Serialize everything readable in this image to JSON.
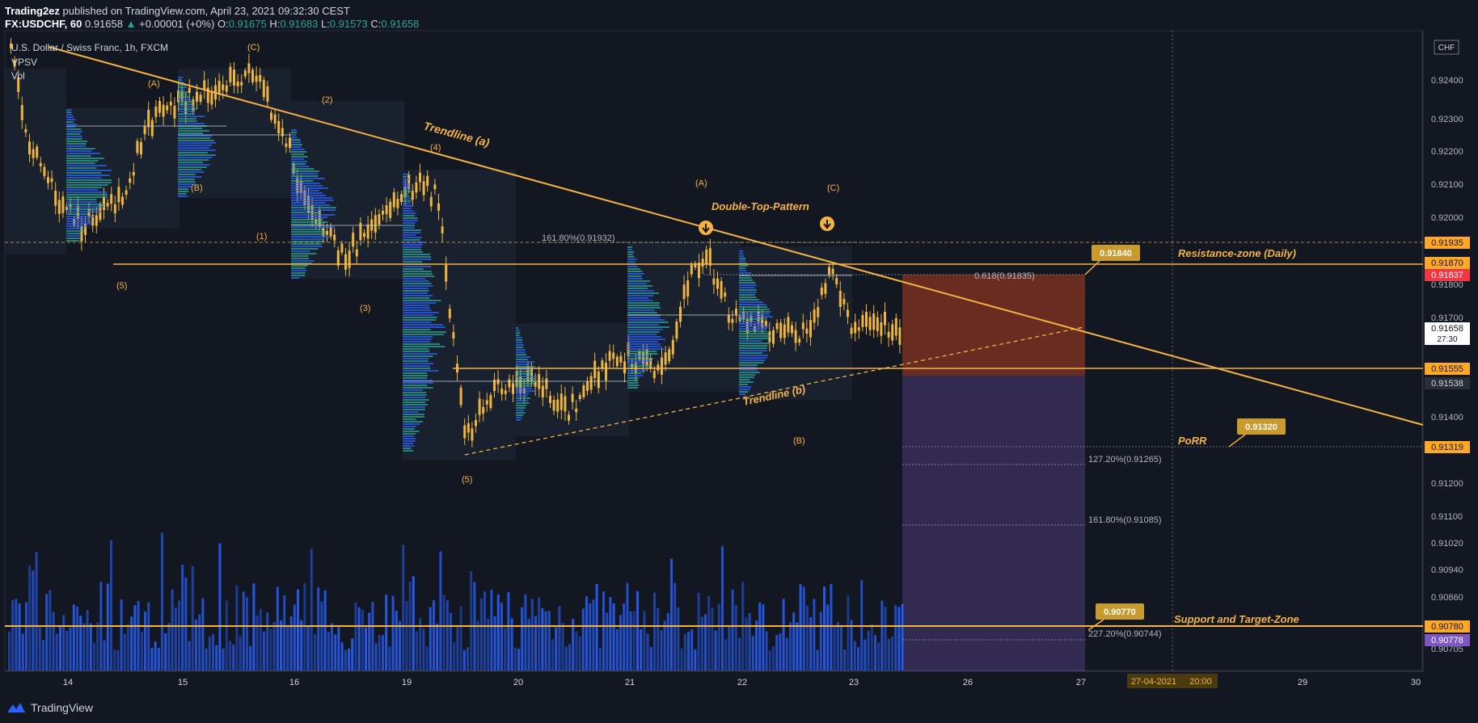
{
  "header": {
    "publisher": "Trading2ez",
    "published_text": "published on TradingView.com, April 23, 2021 09:32:30 CEST",
    "symbol": "FX:USDCHF, 60",
    "price": "0.91658",
    "arrow": "▲",
    "change": "+0.00001 (+0%)",
    "o_label": "O:",
    "o_val": "0.91675",
    "h_label": "H:",
    "h_val": "0.91683",
    "l_label": "L:",
    "l_val": "0.91573",
    "c_label": "C:",
    "c_val": "0.91658"
  },
  "legend": {
    "instrument": "U.S. Dollar / Swiss Franc, 1h, FXCM",
    "indicator1": "VPSV",
    "indicator2": "Vol"
  },
  "chart_data": {
    "type": "candlestick",
    "x_ticks": [
      "14",
      "15",
      "16",
      "19",
      "20",
      "21",
      "22",
      "23",
      "26",
      "27",
      "29",
      "30"
    ],
    "y_ticks": [
      "0.92400",
      "0.92300",
      "0.92200",
      "0.92100",
      "0.92000",
      "0.91800",
      "0.91700",
      "0.91400",
      "0.91200",
      "0.91100",
      "0.91020",
      "0.90940",
      "0.90860",
      "0.90705"
    ],
    "currency": "CHF",
    "price_tags": [
      {
        "label": "0.91935",
        "bg": "#ffa726",
        "fg": "#131722"
      },
      {
        "label": "0.91870",
        "bg": "#ffa726",
        "fg": "#131722"
      },
      {
        "label": "0.91837",
        "bg": "#f23645",
        "fg": "#ffffff"
      },
      {
        "label": "0.91658",
        "bg": "#ffffff",
        "fg": "#131722",
        "sub": "27:30"
      },
      {
        "label": "0.91555",
        "bg": "#ffa726",
        "fg": "#131722"
      },
      {
        "label": "0.91538",
        "bg": "#2a2e39",
        "fg": "#d1d4dc"
      },
      {
        "label": "0.91319",
        "bg": "#ffa726",
        "fg": "#131722"
      },
      {
        "label": "0.90780",
        "bg": "#ffa726",
        "fg": "#131722"
      },
      {
        "label": "0.90778",
        "bg": "#7e57c2",
        "fg": "#ffffff"
      }
    ],
    "annotations": {
      "trendline_a": "Trendline (a)",
      "trendline_b": "Trendline (b)",
      "double_top": "Double-Top-Pattern",
      "resistance": "Resistance-zone (Daily)",
      "porr": "PoRR",
      "support": "Support and Target-Zone",
      "fib_161_top": "161.80%(0.91932)",
      "fib_0618": "0.618(0.91835)",
      "fib_127": "127.20%(0.91265)",
      "fib_161": "161.80%(0.91085)",
      "fib_227": "227.20%(0.90744)",
      "callout_1": "0.91840",
      "callout_2": "0.91320",
      "callout_3": "0.90770",
      "date_badge": "27-04-2021",
      "time_badge": "20:00"
    },
    "wave_labels": [
      "(C)",
      "(A)",
      "(2)",
      "(B)",
      "(1)",
      "(5)",
      "(3)",
      "(4)",
      "(5)",
      "(A)",
      "(C)",
      "(B)"
    ],
    "colors": {
      "background": "#131722",
      "candle": "#f0b63c",
      "line": "#f5b342",
      "volume": "#2962ff",
      "vpsv": "#26a69a",
      "short_risk": "#f4511e",
      "short_target": "#7e57c2"
    }
  },
  "footer": {
    "brand": "TradingView"
  }
}
